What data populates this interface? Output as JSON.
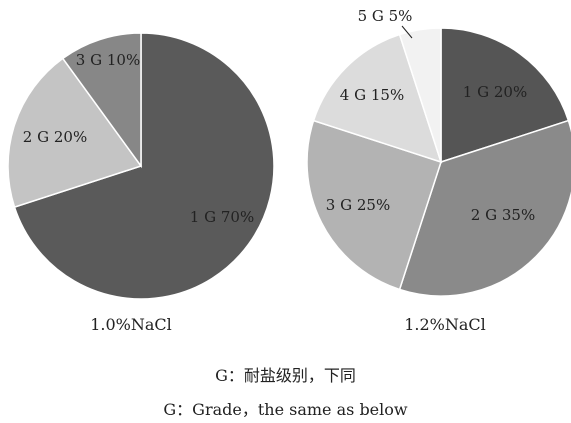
{
  "chart_data": [
    {
      "type": "pie",
      "title": "1.0%NaCl",
      "categories": [
        "1 G",
        "2 G",
        "3 G"
      ],
      "values": [
        70,
        20,
        10
      ],
      "labels": [
        "1 G 70%",
        "2 G 20%",
        "3 G 10%"
      ],
      "colors": [
        "#5a5a5a",
        "#c4c4c4",
        "#878787"
      ]
    },
    {
      "type": "pie",
      "title": "1.2%NaCl",
      "categories": [
        "1 G",
        "2 G",
        "3 G",
        "4 G",
        "5 G"
      ],
      "values": [
        20,
        35,
        25,
        15,
        5
      ],
      "labels": [
        "1 G 20%",
        "2 G 35%",
        "3 G 25%",
        "4 G 15%",
        "5 G 5%"
      ],
      "colors": [
        "#555555",
        "#8a8a8a",
        "#b3b3b3",
        "#dcdcdc",
        "#f2f2f2"
      ]
    }
  ],
  "footnote": {
    "line1": "G：耐盐级别，下同",
    "line2": "G：Grade，the same as below"
  }
}
